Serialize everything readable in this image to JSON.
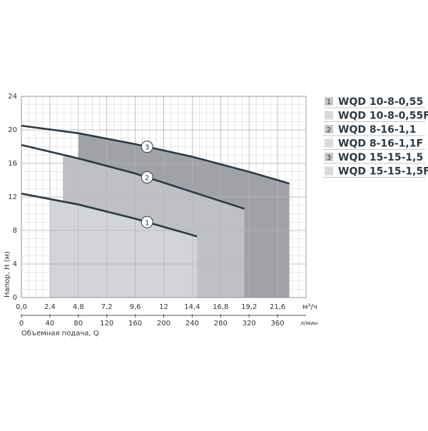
{
  "chart_data": {
    "type": "line",
    "y_label": "Напор, H (м)",
    "x_unit": "м³/ч",
    "x2_unit": "л/мин",
    "x2_label": "Объемная подача, Q",
    "xlim": [
      0,
      24
    ],
    "xticks": [
      {
        "value": 0,
        "label": "0,0"
      },
      {
        "value": 2.4,
        "label": "2,4"
      },
      {
        "value": 4.8,
        "label": "4,8"
      },
      {
        "value": 7.2,
        "label": "7,2"
      },
      {
        "value": 9.6,
        "label": "9,6"
      },
      {
        "value": 12,
        "label": "12"
      },
      {
        "value": 14.4,
        "label": "14,4"
      },
      {
        "value": 16.8,
        "label": "16,8"
      },
      {
        "value": 19.2,
        "label": "19,2"
      },
      {
        "value": 21.6,
        "label": "21,6"
      }
    ],
    "x2lim": [
      0,
      400
    ],
    "x2ticks": [
      0,
      40,
      80,
      120,
      160,
      200,
      240,
      280,
      320,
      360
    ],
    "ylim": [
      0,
      24
    ],
    "yticks": [
      0,
      4,
      8,
      12,
      16,
      20,
      24
    ],
    "grid": true,
    "series": [
      {
        "marker": "1",
        "models": [
          "WQD 10-8-0,55",
          "WQD 10-8-0,55F"
        ],
        "color": "#2b3a45",
        "fill": "#d3d4d7",
        "range_start": 2.4,
        "x": [
          0,
          4.8,
          9.6,
          14.8
        ],
        "values": [
          12.4,
          11.1,
          9.4,
          7.3
        ]
      },
      {
        "marker": "2",
        "models": [
          "WQD 8-16-1,1",
          "WQD 8-16-1,1F"
        ],
        "color": "#2b3a45",
        "fill": "#bfc0c4",
        "range_start": 3.5,
        "x": [
          0,
          4.8,
          9.6,
          14.4,
          18.8
        ],
        "values": [
          18.2,
          16.6,
          14.8,
          12.6,
          10.6
        ]
      },
      {
        "marker": "3",
        "models": [
          "WQD 15-15-1,5",
          "WQD 15-15-1,5F"
        ],
        "color": "#2b3a45",
        "fill": "#a1a2a7",
        "range_start": 4.8,
        "x": [
          0,
          4.8,
          9.6,
          14.4,
          19.2,
          22.6
        ],
        "values": [
          20.5,
          19.6,
          18.3,
          16.8,
          15.0,
          13.6
        ]
      }
    ]
  }
}
